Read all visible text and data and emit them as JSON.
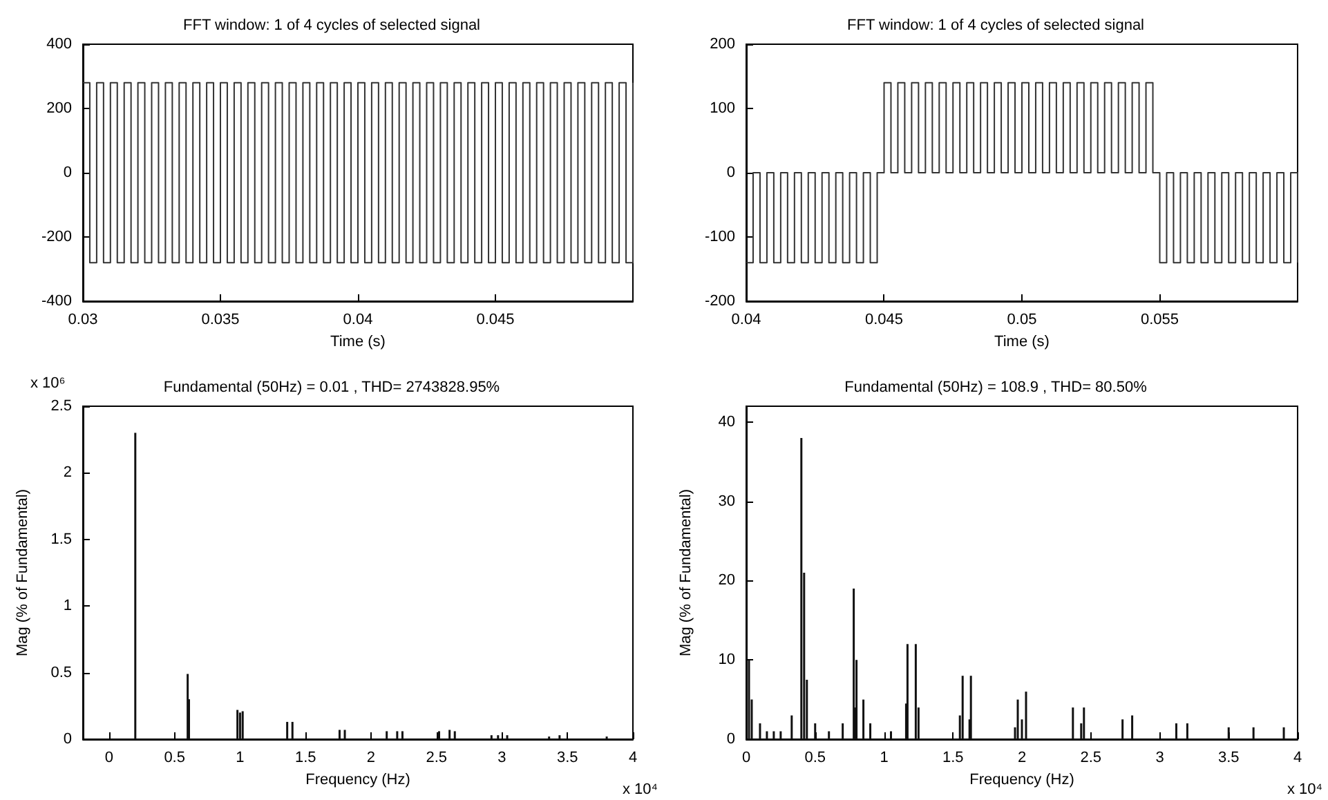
{
  "chart_data": [
    {
      "type": "step",
      "title": "FFT window: 1 of 4 cycles of selected signal",
      "xlabel": "Time (s)",
      "marker": "none",
      "grid": false,
      "x": [
        0.03,
        0.03025,
        0.0305,
        0.03075,
        0.031,
        0.03125,
        0.0315,
        0.03175,
        0.032,
        0.03225,
        0.0325,
        0.03275,
        0.033,
        0.03325,
        0.0335,
        0.03375,
        0.034,
        0.03425,
        0.0345,
        0.03475,
        0.035,
        0.03525,
        0.0355,
        0.03575,
        0.036,
        0.03625,
        0.0365,
        0.03675,
        0.037,
        0.03725,
        0.0375,
        0.03775,
        0.038,
        0.03825,
        0.0385,
        0.03875,
        0.039,
        0.03925,
        0.0395,
        0.03975,
        0.04,
        0.04025,
        0.0405,
        0.04075,
        0.041,
        0.04125,
        0.0415,
        0.04175,
        0.042,
        0.04225,
        0.0425,
        0.04275,
        0.043,
        0.04325,
        0.0435,
        0.04375,
        0.044,
        0.04425,
        0.0445,
        0.04475,
        0.045,
        0.04525,
        0.0455,
        0.04575,
        0.046,
        0.04625,
        0.0465,
        0.04675,
        0.047,
        0.04725,
        0.0475,
        0.04775,
        0.048,
        0.04825,
        0.0485,
        0.04875,
        0.049,
        0.04925,
        0.0495,
        0.04975,
        0.05
      ],
      "series": [
        {
          "color": "#333333",
          "values": [
            280,
            -280,
            280,
            -280,
            280,
            -280,
            280,
            -280,
            280,
            -280,
            280,
            -280,
            280,
            -280,
            280,
            -280,
            280,
            -280,
            280,
            -280,
            280,
            -280,
            280,
            -280,
            280,
            -280,
            280,
            -280,
            280,
            -280,
            280,
            -280,
            280,
            -280,
            280,
            -280,
            280,
            -280,
            280,
            -280,
            280,
            -280,
            280,
            -280,
            280,
            -280,
            280,
            -280,
            280,
            -280,
            280,
            -280,
            280,
            -280,
            280,
            -280,
            280,
            -280,
            280,
            -280,
            280,
            -280,
            280,
            -280,
            280,
            -280,
            280,
            -280,
            280,
            -280,
            280,
            -280,
            280,
            -280,
            280,
            -280,
            280,
            -280,
            280,
            -280,
            280
          ]
        }
      ],
      "xlim": [
        0.03,
        0.05
      ],
      "xticks": [
        0.03,
        0.035,
        0.04,
        0.045
      ],
      "ylim": [
        -400,
        400
      ],
      "yticks": [
        -400,
        -200,
        0,
        200,
        400
      ]
    },
    {
      "type": "step",
      "title": "FFT window: 1 of 4 cycles of selected signal",
      "xlabel": "Time (s)",
      "marker": "none",
      "grid": false,
      "x": [
        0.04,
        0.04025,
        0.0405,
        0.04075,
        0.041,
        0.04125,
        0.0415,
        0.04175,
        0.042,
        0.04225,
        0.0425,
        0.04275,
        0.043,
        0.04325,
        0.0435,
        0.04375,
        0.044,
        0.04425,
        0.0445,
        0.04475,
        0.045,
        0.04525,
        0.0455,
        0.04575,
        0.046,
        0.04625,
        0.0465,
        0.04675,
        0.047,
        0.04725,
        0.0475,
        0.04775,
        0.048,
        0.04825,
        0.0485,
        0.04875,
        0.049,
        0.04925,
        0.0495,
        0.04975,
        0.05,
        0.05025,
        0.0505,
        0.05075,
        0.051,
        0.05125,
        0.0515,
        0.05175,
        0.052,
        0.05225,
        0.0525,
        0.05275,
        0.053,
        0.05325,
        0.0535,
        0.05375,
        0.054,
        0.05425,
        0.0545,
        0.05475,
        0.055,
        0.05525,
        0.0555,
        0.05575,
        0.056,
        0.05625,
        0.0565,
        0.05675,
        0.057,
        0.05725,
        0.0575,
        0.05775,
        0.058,
        0.05825,
        0.0585,
        0.05875,
        0.059,
        0.05925,
        0.0595,
        0.05975,
        0.06
      ],
      "series": [
        {
          "color": "#333333",
          "values": [
            -140,
            0,
            -140,
            0,
            -140,
            0,
            -140,
            0,
            -140,
            0,
            -140,
            0,
            -140,
            0,
            -140,
            0,
            -140,
            0,
            -140,
            0,
            140,
            0,
            140,
            0,
            140,
            0,
            140,
            0,
            140,
            0,
            140,
            0,
            140,
            0,
            140,
            0,
            140,
            0,
            140,
            0,
            140,
            0,
            140,
            0,
            140,
            0,
            140,
            0,
            140,
            0,
            140,
            0,
            140,
            0,
            140,
            0,
            140,
            0,
            140,
            0,
            -140,
            0,
            -140,
            0,
            -140,
            0,
            -140,
            0,
            -140,
            0,
            -140,
            0,
            -140,
            0,
            -140,
            0,
            -140,
            0,
            -140,
            0,
            -140
          ]
        }
      ],
      "xlim": [
        0.04,
        0.06
      ],
      "xticks": [
        0.04,
        0.045,
        0.05,
        0.055
      ],
      "ylim": [
        -200,
        200
      ],
      "yticks": [
        -200,
        -100,
        0,
        100,
        200
      ]
    },
    {
      "type": "bar",
      "title": "Fundamental (50Hz) = 0.01 , THD= 2743828.95%",
      "xlabel": "Frequency (Hz)",
      "ylabel": "Mag (% of Fundamental)",
      "grid": false,
      "annotations": [
        "x 10⁶",
        "x 10⁴"
      ],
      "x": [
        0.2,
        0.6,
        0.61,
        0.98,
        1.0,
        1.02,
        1.36,
        1.4,
        1.76,
        1.8,
        2.12,
        2.2,
        2.24,
        2.52,
        2.6,
        2.64,
        2.92,
        2.97,
        3.04,
        3.36,
        3.44,
        3.8
      ],
      "series": [
        {
          "color": "#111111",
          "values": [
            2.3,
            0.49,
            0.3,
            0.22,
            0.2,
            0.21,
            0.13,
            0.13,
            0.07,
            0.07,
            0.06,
            0.06,
            0.06,
            0.06,
            0.07,
            0.06,
            0.03,
            0.03,
            0.03,
            0.02,
            0.03,
            0.02
          ]
        }
      ],
      "xlim": [
        -0.2,
        4
      ],
      "xticks": [
        0,
        0.5,
        1,
        1.5,
        2,
        2.5,
        3,
        3.5,
        4
      ],
      "ylim": [
        0,
        2.5
      ],
      "yticks": [
        0,
        0.5,
        1,
        1.5,
        2,
        2.5
      ]
    },
    {
      "type": "bar",
      "title": "Fundamental (50Hz) = 108.9 , THD= 80.50%",
      "xlabel": "Frequency (Hz)",
      "ylabel": "Mag (% of Fundamental)",
      "grid": false,
      "annotations": [
        "x 10⁴"
      ],
      "x": [
        0.02,
        0.04,
        0.1,
        0.15,
        0.2,
        0.25,
        0.33,
        0.4,
        0.42,
        0.44,
        0.5,
        0.6,
        0.7,
        0.78,
        0.79,
        0.8,
        0.85,
        0.9,
        1.05,
        1.16,
        1.17,
        1.23,
        1.25,
        1.55,
        1.57,
        1.62,
        1.63,
        1.95,
        1.97,
        2.0,
        2.03,
        2.37,
        2.43,
        2.45,
        2.73,
        2.8,
        3.12,
        3.2,
        3.5,
        3.68,
        3.9
      ],
      "series": [
        {
          "color": "#111111",
          "values": [
            10,
            5,
            2,
            1,
            1,
            1,
            3,
            38,
            21,
            7.5,
            2,
            1,
            2,
            19,
            4,
            10,
            5,
            2,
            1,
            4.5,
            12,
            12,
            4,
            3,
            8,
            2.5,
            8,
            1.5,
            5,
            2.5,
            6,
            4,
            2,
            4,
            2.5,
            3,
            2,
            2,
            1.5,
            1.5,
            1.5
          ]
        }
      ],
      "xlim": [
        0,
        4
      ],
      "xticks": [
        0,
        0.5,
        1,
        1.5,
        2,
        2.5,
        3,
        3.5,
        4
      ],
      "ylim": [
        0,
        42
      ],
      "yticks": [
        0,
        10,
        20,
        30,
        40
      ]
    }
  ]
}
